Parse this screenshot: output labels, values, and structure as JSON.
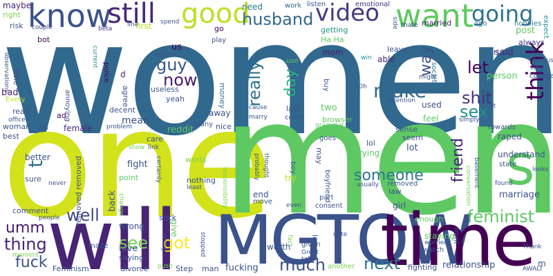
{
  "words": [
    {
      "text": "women",
      "color": "#31688e"
    },
    {
      "text": "one",
      "color": "#d2e21b"
    },
    {
      "text": "men",
      "color": "#5ec962"
    },
    {
      "text": "will",
      "color": "#482475"
    },
    {
      "text": "MGTOW",
      "color": "#3b528b"
    },
    {
      "text": "time",
      "color": "#440154"
    },
    {
      "text": "know",
      "color": "#3b528b"
    },
    {
      "text": "still",
      "color": "#482878"
    },
    {
      "text": "good",
      "color": "#bddf26"
    },
    {
      "text": "want",
      "color": "#5ec962"
    },
    {
      "text": "video",
      "color": "#443983"
    },
    {
      "text": "going",
      "color": "#2c728e"
    },
    {
      "text": "husband",
      "color": "#31688e"
    },
    {
      "text": "think",
      "color": "#440154"
    },
    {
      "text": "make",
      "color": "#31688e"
    },
    {
      "text": "shit",
      "color": "#46327e"
    },
    {
      "text": "sex",
      "color": "#21918c"
    },
    {
      "text": "guy",
      "color": "#3b528b"
    },
    {
      "text": "now",
      "color": "#481a6c"
    },
    {
      "text": "really",
      "color": "#2c728e"
    },
    {
      "text": "day",
      "color": "#29af7f"
    },
    {
      "text": "way",
      "color": "#3b528b"
    },
    {
      "text": "let",
      "color": "#440154"
    },
    {
      "text": "someone",
      "color": "#2a788e"
    },
    {
      "text": "friend",
      "color": "#482475"
    },
    {
      "text": "feminist",
      "color": "#5ec962"
    },
    {
      "text": "well",
      "color": "#3e4989"
    },
    {
      "text": "umm",
      "color": "#481a6c"
    },
    {
      "text": "thing",
      "color": "#482475"
    },
    {
      "text": "fuck",
      "color": "#3b528b"
    },
    {
      "text": "got",
      "color": "#fde725"
    },
    {
      "text": "see",
      "color": "#7ad151"
    },
    {
      "text": "much",
      "color": "#3b528b"
    },
    {
      "text": "next",
      "color": "#2a788e"
    },
    {
      "text": "s",
      "color": "#5ec962"
    },
    {
      "text": "t",
      "color": "#2c728e"
    },
    {
      "text": "maybe",
      "color": "#482475"
    },
    {
      "text": "right",
      "color": "#7ad151"
    },
    {
      "text": "risk",
      "color": "#3b528b"
    },
    {
      "text": "bot",
      "color": "#440154"
    },
    {
      "text": "couple",
      "color": "#3e4989"
    },
    {
      "text": "need",
      "color": "#2a788e"
    },
    {
      "text": "work",
      "color": "#31688e"
    },
    {
      "text": "listen",
      "color": "#3b528b"
    },
    {
      "text": "emotional",
      "color": "#46327e"
    },
    {
      "text": "ago",
      "color": "#2c728e"
    },
    {
      "text": "hobbies",
      "color": "#2a788e"
    },
    {
      "text": "expect",
      "color": "#21918c"
    },
    {
      "text": "first",
      "color": "#bddf26"
    },
    {
      "text": "spend",
      "color": "#3b528b"
    },
    {
      "text": "getting",
      "color": "#21918c"
    },
    {
      "text": "married",
      "color": "#482475"
    },
    {
      "text": "male",
      "color": "#3b528b"
    },
    {
      "text": "post",
      "color": "#5ec962"
    },
    {
      "text": "always",
      "color": "#443983"
    },
    {
      "text": "obvious",
      "color": "#3b528b"
    },
    {
      "text": "college",
      "color": "#3b528b"
    },
    {
      "text": "find",
      "color": "#3b528b"
    },
    {
      "text": "said",
      "color": "#482878"
    },
    {
      "text": "rule",
      "color": "#3b528b"
    },
    {
      "text": "person",
      "color": "#5ec962"
    },
    {
      "text": "might",
      "color": "#3b528b"
    },
    {
      "text": "society",
      "color": "#2c728e"
    },
    {
      "text": "leave",
      "color": "#3b528b"
    },
    {
      "text": "able",
      "color": "#482878"
    },
    {
      "text": "win",
      "color": "#21918c"
    },
    {
      "text": "mom",
      "color": "#481a6c"
    },
    {
      "text": "Ha Ha",
      "color": "#5ec962"
    },
    {
      "text": "use",
      "color": "#5ec962"
    },
    {
      "text": "go",
      "color": "#440154"
    },
    {
      "text": "us",
      "color": "#440154"
    },
    {
      "text": "play",
      "color": "#3b528b"
    },
    {
      "text": "normal",
      "color": "#3b528b"
    },
    {
      "text": "police",
      "color": "#440154"
    },
    {
      "text": "current",
      "color": "#21918c"
    },
    {
      "text": "beta",
      "color": "#443983"
    },
    {
      "text": "line",
      "color": "#3b528b"
    },
    {
      "text": "useless",
      "color": "#3b528b"
    },
    {
      "text": "agree",
      "color": "#3b528b"
    },
    {
      "text": "d",
      "color": "#482475"
    },
    {
      "text": "yeah",
      "color": "#3b528b"
    },
    {
      "text": "money",
      "color": "#2c728e"
    },
    {
      "text": "away",
      "color": "#3b528b"
    },
    {
      "text": "observations",
      "color": "#3b528b"
    },
    {
      "text": "hole",
      "color": "#3b528b"
    },
    {
      "text": "annoying",
      "color": "#3b528b"
    },
    {
      "text": "Every",
      "color": "#bddf26"
    },
    {
      "text": "bad",
      "color": "#482475"
    },
    {
      "text": "read",
      "color": "#3b528b"
    },
    {
      "text": "ad",
      "color": "#440154"
    },
    {
      "text": "officer",
      "color": "#3b528b"
    },
    {
      "text": "woman",
      "color": "#3b528b"
    },
    {
      "text": "fail",
      "color": "#3b528b"
    },
    {
      "text": "best",
      "color": "#3b528b"
    },
    {
      "text": "female",
      "color": "#482878"
    },
    {
      "text": "mean",
      "color": "#3b528b"
    },
    {
      "text": "decent",
      "color": "#3b528b"
    },
    {
      "text": "problem",
      "color": "#3b528b"
    },
    {
      "text": "reddit",
      "color": "#5ec962"
    },
    {
      "text": "many",
      "color": "#3b528b"
    },
    {
      "text": "nice",
      "color": "#3b528b"
    },
    {
      "text": "care",
      "color": "#3b528b"
    },
    {
      "text": "link",
      "color": "#3b528b"
    },
    {
      "text": "show",
      "color": "#7ad151"
    },
    {
      "text": "fight",
      "color": "#3b528b"
    },
    {
      "text": "point",
      "color": "#5ec962"
    },
    {
      "text": "certainly",
      "color": "#3b528b"
    },
    {
      "text": "better",
      "color": "#3b528b"
    },
    {
      "text": "sure",
      "color": "#3b528b"
    },
    {
      "text": "never",
      "color": "#3b528b"
    },
    {
      "text": "comment",
      "color": "#3b528b"
    },
    {
      "text": "people",
      "color": "#3b528b"
    },
    {
      "text": "moment",
      "color": "#7ad151"
    },
    {
      "text": "removed removed",
      "color": "#3b528b"
    },
    {
      "text": "back",
      "color": "#3b528b"
    },
    {
      "text": "world",
      "color": "#7ad151"
    },
    {
      "text": "change",
      "color": "#7ad151"
    },
    {
      "text": "suck",
      "color": "#3b528b"
    },
    {
      "text": "nothing",
      "color": "#3b528b"
    },
    {
      "text": "least",
      "color": "#3b528b"
    },
    {
      "text": "responsibility",
      "color": "#7ad151"
    },
    {
      "text": "wrong",
      "color": "#3b528b"
    },
    {
      "text": "give",
      "color": "#5ec962"
    },
    {
      "text": "love",
      "color": "#3b528b"
    },
    {
      "text": "made",
      "color": "#3b528b"
    },
    {
      "text": "saying",
      "color": "#3b528b"
    },
    {
      "text": "string",
      "color": "#3b528b"
    },
    {
      "text": "stopped",
      "color": "#3b528b"
    },
    {
      "text": "push",
      "color": "#7ad151"
    },
    {
      "text": "Step",
      "color": "#3b528b"
    },
    {
      "text": "man",
      "color": "#3b528b"
    },
    {
      "text": "fucking",
      "color": "#3b528b"
    },
    {
      "text": "divorce",
      "color": "#3b528b"
    },
    {
      "text": "Feminism",
      "color": "#3b528b"
    },
    {
      "text": "two",
      "color": "#5ec962"
    },
    {
      "text": "last",
      "color": "#3b528b"
    },
    {
      "text": "cause",
      "color": "#3b528b"
    },
    {
      "text": "marry",
      "color": "#3b528b"
    },
    {
      "text": "court",
      "color": "#3b528b"
    },
    {
      "text": "browser",
      "color": "#5ec962"
    },
    {
      "text": "grammar",
      "color": "#5ec962"
    },
    {
      "text": "Oh",
      "color": "#3b528b"
    },
    {
      "text": "attention",
      "color": "#3b528b"
    },
    {
      "text": "used",
      "color": "#3b528b"
    },
    {
      "text": "feel",
      "color": "#5ec962"
    },
    {
      "text": "simply",
      "color": "#3b528b"
    },
    {
      "text": "gt",
      "color": "#3b528b"
    },
    {
      "text": "buy",
      "color": "#3b528b"
    },
    {
      "text": "sense",
      "color": "#3b528b"
    },
    {
      "text": "towards",
      "color": "#3b528b"
    },
    {
      "text": "raped",
      "color": "#3b528b"
    },
    {
      "text": "understand",
      "color": "#3b528b"
    },
    {
      "text": "state",
      "color": "#3b528b"
    },
    {
      "text": "basement",
      "color": "#3b528b"
    },
    {
      "text": "looks",
      "color": "#3b528b"
    },
    {
      "text": "found",
      "color": "#3b528b"
    },
    {
      "text": "marriage",
      "color": "#3b528b"
    },
    {
      "text": "goes",
      "color": "#3b528b"
    },
    {
      "text": "lol",
      "color": "#3b528b"
    },
    {
      "text": "seem",
      "color": "#3b528b"
    },
    {
      "text": "trying",
      "color": "#5ec962"
    },
    {
      "text": "lot",
      "color": "#3b528b"
    },
    {
      "text": "law",
      "color": "#3b528b"
    },
    {
      "text": "removed",
      "color": "#3b528b"
    },
    {
      "text": "usually",
      "color": "#3b528b"
    },
    {
      "text": "conversation",
      "color": "#7ad151"
    },
    {
      "text": "probably",
      "color": "#3b528b"
    },
    {
      "text": "thought",
      "color": "#3b528b"
    },
    {
      "text": "boy",
      "color": "#3b528b"
    },
    {
      "text": "try",
      "color": "#bddf26"
    },
    {
      "text": "may",
      "color": "#3b528b"
    },
    {
      "text": "boyfriend",
      "color": "#3b528b"
    },
    {
      "text": "end",
      "color": "#3b528b"
    },
    {
      "text": "move",
      "color": "#3b528b"
    },
    {
      "text": "part",
      "color": "#3b528b"
    },
    {
      "text": "consent",
      "color": "#3b528b"
    },
    {
      "text": "girl",
      "color": "#3b528b"
    },
    {
      "text": "even",
      "color": "#3b528b"
    },
    {
      "text": "gets",
      "color": "#3b528b"
    },
    {
      "text": "enough",
      "color": "#5ec962"
    },
    {
      "text": "worth",
      "color": "#3b528b"
    },
    {
      "text": "fact",
      "color": "#7ad151"
    },
    {
      "text": "given",
      "color": "#3b528b"
    },
    {
      "text": "Great",
      "color": "#3b528b"
    },
    {
      "text": "talk",
      "color": "#3b528b"
    },
    {
      "text": "long",
      "color": "#3b528b"
    },
    {
      "text": "date",
      "color": "#3b528b"
    },
    {
      "text": "front",
      "color": "#3b528b"
    },
    {
      "text": "staying",
      "color": "#5ec962"
    },
    {
      "text": "worried",
      "color": "#3b528b"
    },
    {
      "text": "watch",
      "color": "#3b528b"
    },
    {
      "text": "ll",
      "color": "#3b528b"
    },
    {
      "text": "another",
      "color": "#7ad151"
    },
    {
      "text": "fighting",
      "color": "#3b528b"
    },
    {
      "text": "relationship",
      "color": "#3b528b"
    },
    {
      "text": "AWALT",
      "color": "#3b528b"
    },
    {
      "text": "Thank",
      "color": "#3b528b"
    },
    {
      "text": "m",
      "color": "#3b528b"
    },
    {
      "text": "side",
      "color": "#3b528b"
    }
  ]
}
